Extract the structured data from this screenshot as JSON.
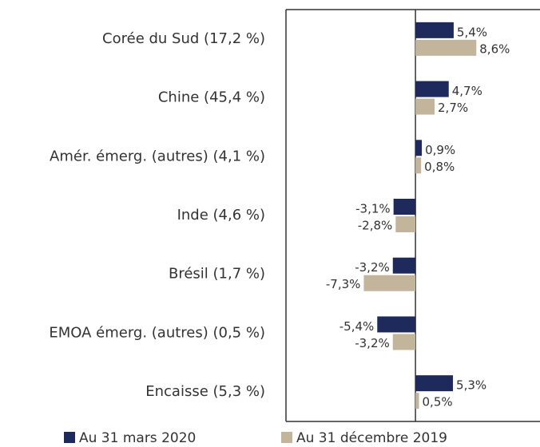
{
  "chart_data": {
    "type": "hbar",
    "categories": [
      "Corée du Sud (17,2 %)",
      "Chine (45,4 %)",
      "Amér. émerg. (autres) (4,1 %)",
      "Inde (4,6 %)",
      "Brésil (1,7 %)",
      "EMOA émerg. (autres) (0,5 %)",
      "Encaisse (5,3 %)"
    ],
    "series": [
      {
        "name": "Au 31 mars 2020",
        "color": "#1f2a5c",
        "values": [
          5.4,
          4.7,
          0.9,
          -3.1,
          -3.2,
          -5.4,
          5.3
        ],
        "value_labels": [
          "5,4%",
          "4,7%",
          "0,9%",
          "-3,1%",
          "-3,2%",
          "-5,4%",
          "5,3%"
        ]
      },
      {
        "name": "Au 31 décembre 2019",
        "color": "#c2b59b",
        "values": [
          8.6,
          2.7,
          0.8,
          -2.8,
          -7.3,
          -3.2,
          0.5
        ],
        "value_labels": [
          "8,6%",
          "2,7%",
          "0,8%",
          "-2,8%",
          "-7,3%",
          "-3,2%",
          "0,5%"
        ]
      }
    ],
    "xlim": [
      -18.3,
      17.6
    ]
  }
}
